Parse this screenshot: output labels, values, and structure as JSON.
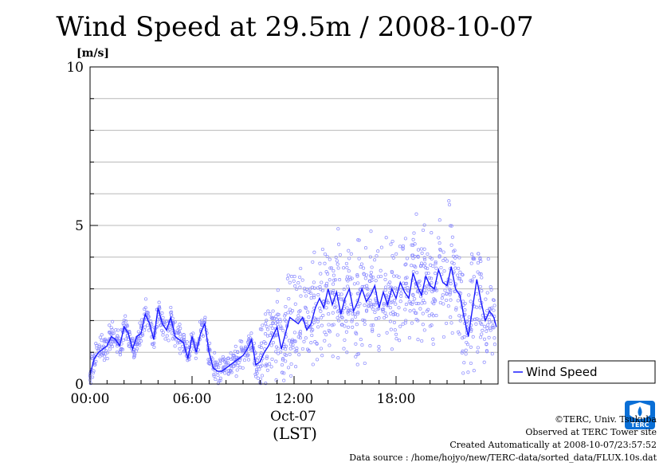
{
  "header": {
    "title": "Wind Speed at 29.5m / 2008-10-07",
    "unit": "[m/s]"
  },
  "chart_data": {
    "type": "line",
    "title": "Wind Speed at 29.5m / 2008-10-07",
    "ylabel": "[m/s]",
    "xlabel": "(LST)",
    "x_date_label": "Oct-07",
    "xlim": [
      0,
      24
    ],
    "ylim": [
      0,
      10
    ],
    "x_tick_values": [
      0,
      6,
      12,
      18
    ],
    "x_tick_labels": [
      "00:00",
      "06:00",
      "12:00",
      "18:00"
    ],
    "y_tick_values": [
      0,
      5,
      10
    ],
    "y_tick_labels": [
      "0",
      "5",
      "10"
    ],
    "grid": true,
    "legend_position": "right-bottom",
    "series": [
      {
        "name": "Wind Speed",
        "color": "#1a1aff",
        "x": [
          0.0,
          0.25,
          0.5,
          0.75,
          1.0,
          1.25,
          1.5,
          1.75,
          2.0,
          2.25,
          2.5,
          2.75,
          3.0,
          3.25,
          3.5,
          3.75,
          4.0,
          4.25,
          4.5,
          4.75,
          5.0,
          5.25,
          5.5,
          5.75,
          6.0,
          6.25,
          6.5,
          6.75,
          7.0,
          7.25,
          7.5,
          7.75,
          8.0,
          8.25,
          8.5,
          8.75,
          9.0,
          9.25,
          9.5,
          9.75,
          10.0,
          10.25,
          10.5,
          10.75,
          11.0,
          11.25,
          11.5,
          11.75,
          12.0,
          12.25,
          12.5,
          12.75,
          13.0,
          13.25,
          13.5,
          13.75,
          14.0,
          14.25,
          14.5,
          14.75,
          15.0,
          15.25,
          15.5,
          15.75,
          16.0,
          16.25,
          16.5,
          16.75,
          17.0,
          17.25,
          17.5,
          17.75,
          18.0,
          18.25,
          18.5,
          18.75,
          19.0,
          19.25,
          19.5,
          19.75,
          20.0,
          20.25,
          20.5,
          20.75,
          21.0,
          21.25,
          21.5,
          21.75,
          22.0,
          22.25,
          22.5,
          22.75,
          23.0,
          23.25,
          23.5,
          23.75,
          23.9
        ],
        "values": [
          0.3,
          0.8,
          1.0,
          1.1,
          1.2,
          1.5,
          1.4,
          1.2,
          1.8,
          1.6,
          1.1,
          1.5,
          1.6,
          2.2,
          1.9,
          1.4,
          2.4,
          1.9,
          1.7,
          2.1,
          1.5,
          1.4,
          1.3,
          0.8,
          1.5,
          1.0,
          1.6,
          1.9,
          1.0,
          0.5,
          0.4,
          0.4,
          0.5,
          0.6,
          0.7,
          0.8,
          0.9,
          1.1,
          1.4,
          0.6,
          0.7,
          1.0,
          1.2,
          1.5,
          1.8,
          1.1,
          1.6,
          2.1,
          2.0,
          1.9,
          2.1,
          1.7,
          1.9,
          2.4,
          2.7,
          2.4,
          3.0,
          2.5,
          2.9,
          2.2,
          2.7,
          3.0,
          2.3,
          2.6,
          3.0,
          2.6,
          2.8,
          3.1,
          2.4,
          2.9,
          2.5,
          3.0,
          2.7,
          3.2,
          2.9,
          2.7,
          3.5,
          3.1,
          2.8,
          3.4,
          3.1,
          3.0,
          3.6,
          3.2,
          3.1,
          3.7,
          3.0,
          2.8,
          2.1,
          1.5,
          2.4,
          3.3,
          2.6,
          2.0,
          2.3,
          2.1,
          1.8
        ]
      }
    ]
  },
  "legend": {
    "label": "Wind Speed"
  },
  "footer": {
    "credit": "©TERC, Univ. Tsukuba",
    "observed": "Observed at TERC Tower site",
    "created": "Created Automatically at 2008-10-07/23:57:52",
    "source": "Data source : /home/hojyo/new/TERC-data/sorted_data/FLUX.10s.dat"
  },
  "logo": {
    "text": "TERC",
    "color": "#0a6fd6"
  }
}
